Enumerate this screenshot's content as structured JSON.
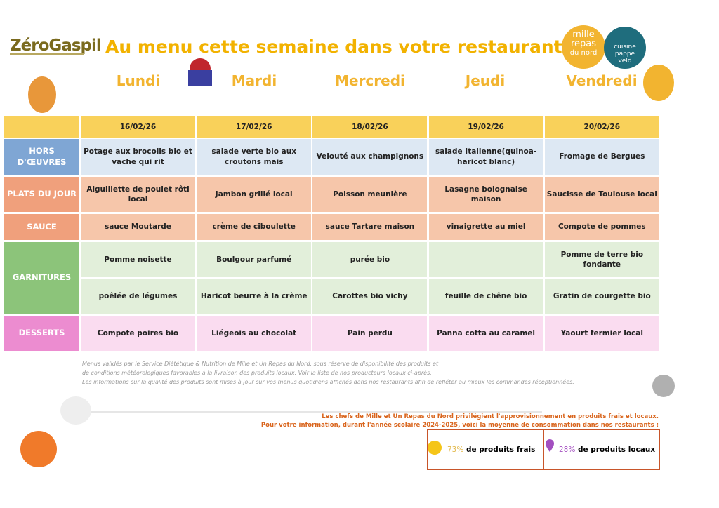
{
  "header": {
    "logo": "ZéroGaspil",
    "title": "Au menu cette semaine dans votre restaurant",
    "brand_a": [
      "mille",
      "repas",
      "du nord"
    ],
    "brand_b": [
      "cuisine",
      "pappe",
      "veld"
    ]
  },
  "days": [
    "Lundi",
    "Mardi",
    "Mercredi",
    "Jeudi",
    "Vendredi"
  ],
  "table": {
    "dates": [
      "16/02/26",
      "17/02/26",
      "18/02/26",
      "19/02/26",
      "20/02/26"
    ],
    "rows": [
      {
        "label": "HORS D'ŒUVRES",
        "cells": [
          "Potage aux brocolis bio et vache qui rit",
          "salade verte bio aux croutons mais",
          "Velouté aux champignons",
          "salade Italienne(quinoa-haricot blanc)",
          "Fromage de Bergues"
        ]
      },
      {
        "label": "PLATS DU JOUR",
        "cells": [
          "Aiguillette de poulet rôti local",
          "Jambon grillé local",
          "Poisson meunière",
          "Lasagne bolognaise maison",
          "Saucisse de Toulouse local"
        ]
      },
      {
        "label": "SAUCE",
        "cells": [
          "sauce Moutarde",
          "crème de ciboulette",
          "sauce Tartare maison",
          "vinaigrette au miel",
          "Compote de pommes"
        ]
      },
      {
        "label": "GARNITURES",
        "cells": [
          "Pomme noisette",
          "Boulgour parfumé",
          "purée bio",
          null,
          "Pomme de terre bio fondante"
        ],
        "cells_2": [
          "poêlée de légumes",
          "Haricot beurre à la crème",
          "Carottes bio vichy",
          "feuille de chêne bio",
          "Gratin de courgette bio"
        ]
      },
      {
        "label": "DESSERTS",
        "cells": [
          "Compote poires bio",
          "Liégeois au chocolat",
          "Pain perdu",
          "Panna cotta au caramel",
          "Yaourt fermier local"
        ]
      }
    ]
  },
  "notes": [
    "Menus validés par le Service Diététique & Nutrition de Mille et Un Repas du Nord, sous réserve de disponibilité des produits et",
    "de conditions météorologiques favorables à la livraison des produits locaux. Voir la liste de nos producteurs locaux ci-après.",
    "Les informations sur la qualité des produits sont mises à jour sur vos menus quotidiens affichés dans nos restaurants afin de refléter au mieux les commandes réceptionnées."
  ],
  "message": [
    "Les chefs de Mille et Un Repas du Nord privilégient l'approvisionnement en produits frais et locaux.",
    "Pour votre information, durant l'année scolaire 2024-2025, voici la moyenne de consommation dans nos restaurants :"
  ],
  "stats": [
    {
      "value": "73%",
      "text": "de produits frais"
    },
    {
      "value": "28%",
      "text": "de produits locaux"
    }
  ]
}
